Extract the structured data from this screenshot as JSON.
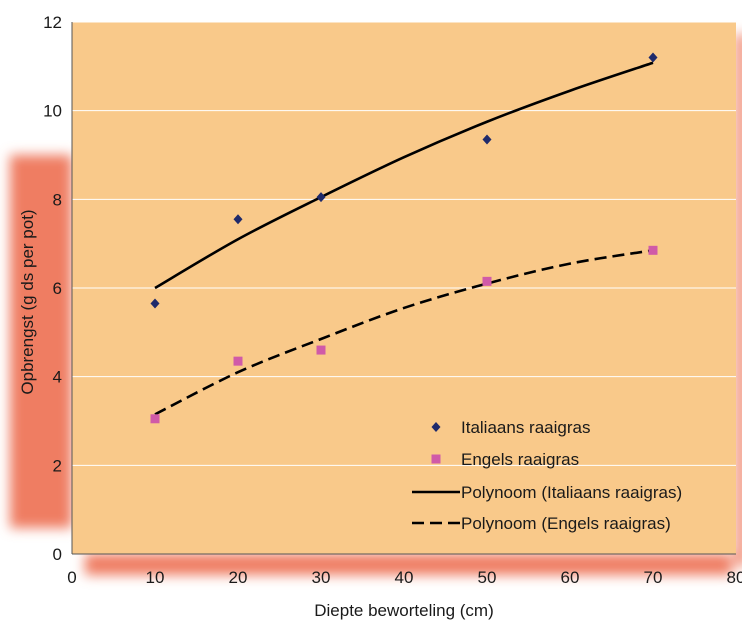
{
  "chart_data": {
    "type": "scatter",
    "xlabel": "Diepte beworteling (cm)",
    "ylabel": "Opbrengst (g ds per pot)",
    "xlim": [
      0,
      80
    ],
    "ylim": [
      0,
      12
    ],
    "x_ticks": [
      0,
      10,
      20,
      30,
      40,
      50,
      60,
      70,
      80
    ],
    "y_ticks": [
      0,
      2,
      4,
      6,
      8,
      10,
      12
    ],
    "grid": "horizontal",
    "legend_position": "bottom-right",
    "series": [
      {
        "name": "Italiaans raaigras",
        "marker": "diamond",
        "color": "#1f2a6b",
        "x": [
          10,
          20,
          30,
          50,
          70
        ],
        "y": [
          5.65,
          7.55,
          8.05,
          9.35,
          11.2
        ]
      },
      {
        "name": "Engels raaigras",
        "marker": "square",
        "color": "#d05aa8",
        "x": [
          10,
          20,
          30,
          50,
          70
        ],
        "y": [
          3.05,
          4.35,
          4.6,
          6.15,
          6.85
        ]
      }
    ],
    "trendlines": [
      {
        "name": "Polynoom (Italiaans  raaigras)",
        "style": "solid",
        "color": "#000000",
        "x": [
          10,
          20,
          30,
          40,
          50,
          60,
          70
        ],
        "y": [
          6.0,
          7.1,
          8.05,
          8.95,
          9.75,
          10.45,
          11.08
        ]
      },
      {
        "name": "Polynoom (Engels raaigras)",
        "style": "dashed",
        "color": "#000000",
        "x": [
          10,
          20,
          30,
          40,
          50,
          60,
          70
        ],
        "y": [
          3.15,
          4.1,
          4.85,
          5.55,
          6.1,
          6.55,
          6.85
        ]
      }
    ],
    "colors": {
      "plot_background": "#f9c98a",
      "shadow": "#ef7d62",
      "gridline": "#ffffff"
    }
  }
}
